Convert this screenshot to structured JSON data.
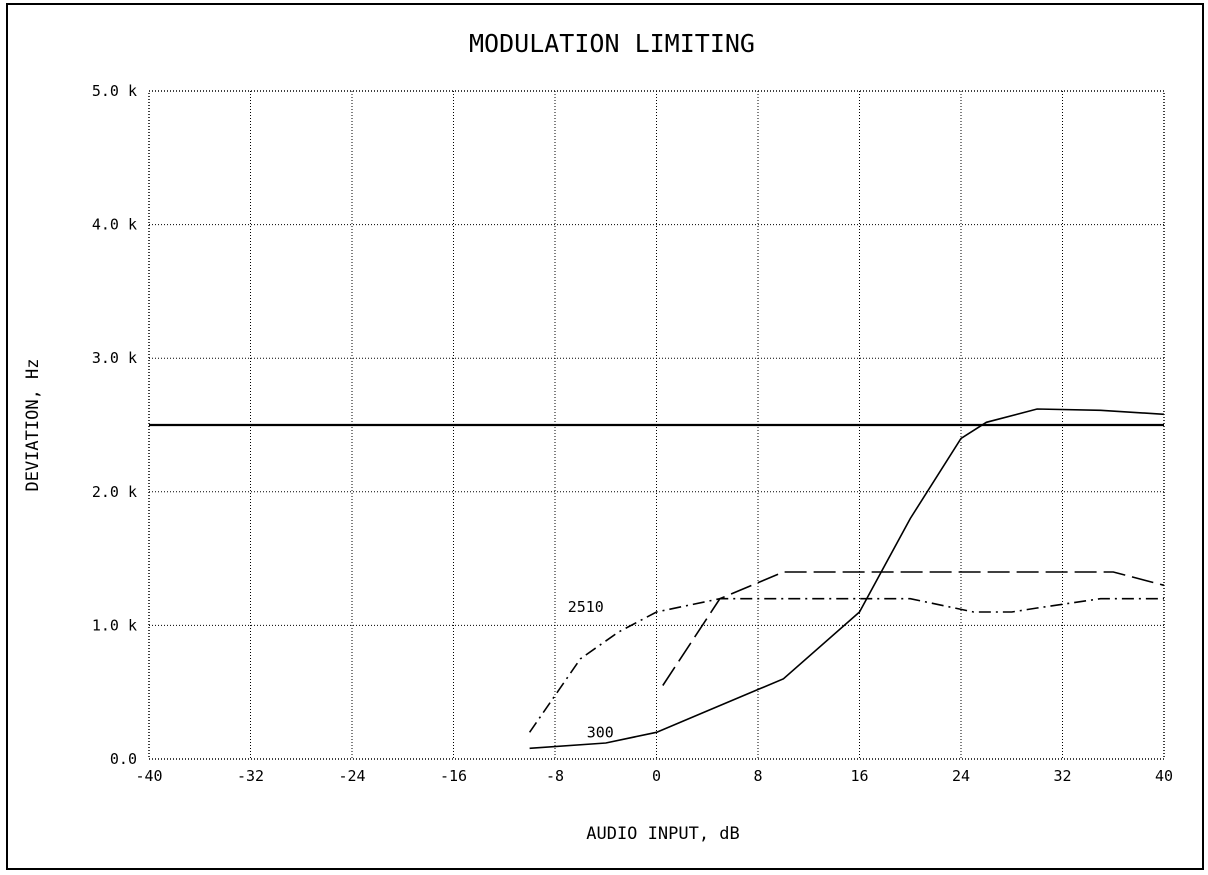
{
  "chart_data": {
    "type": "line",
    "title": "MODULATION LIMITING",
    "xlabel": "AUDIO INPUT, dB",
    "ylabel": "DEVIATION, Hz",
    "xlim": [
      -40,
      40
    ],
    "ylim": [
      0,
      5000
    ],
    "xticks": [
      -40,
      -32,
      -24,
      -16,
      -8,
      0,
      8,
      16,
      24,
      32,
      40
    ],
    "xtick_labels": [
      "-40",
      "-32",
      "-24",
      "-16",
      "-8",
      "0",
      "8",
      "16",
      "24",
      "32",
      "40"
    ],
    "yticks": [
      0,
      1000,
      2000,
      3000,
      4000,
      5000
    ],
    "ytick_labels": [
      "0.0",
      "1.0 k",
      "2.0 k",
      "3.0 k",
      "4.0 k",
      "5.0 k"
    ],
    "grid": true,
    "series": [
      {
        "name": "300",
        "style": "solid",
        "x": [
          -10,
          -4,
          0,
          4,
          10,
          16,
          20,
          24,
          26,
          30,
          35,
          40
        ],
        "y": [
          80,
          120,
          200,
          360,
          600,
          1100,
          1800,
          2400,
          2520,
          2620,
          2610,
          2580
        ]
      },
      {
        "name": "",
        "style": "long-dash",
        "x": [
          0.5,
          5,
          10,
          20,
          30,
          36,
          40
        ],
        "y": [
          550,
          1200,
          1400,
          1400,
          1400,
          1400,
          1300
        ]
      },
      {
        "name": "2510",
        "style": "dash-dot",
        "x": [
          -10,
          -6,
          -3,
          0,
          5,
          10,
          20,
          25,
          28,
          30,
          35,
          40
        ],
        "y": [
          200,
          750,
          950,
          1100,
          1200,
          1200,
          1200,
          1100,
          1100,
          1130,
          1200,
          1200
        ]
      },
      {
        "name": "",
        "style": "reference",
        "x": [
          -40,
          40
        ],
        "y": [
          2500,
          2500
        ]
      }
    ]
  }
}
